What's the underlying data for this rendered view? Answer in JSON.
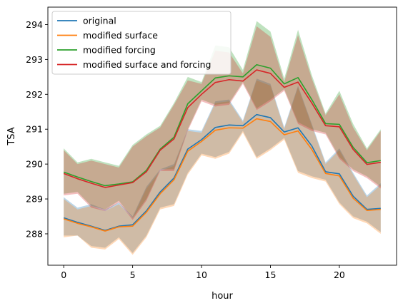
{
  "chart_data": {
    "type": "line",
    "xlabel": "hour",
    "ylabel": "TSA",
    "xlim": [
      -1.15,
      24.15
    ],
    "ylim": [
      287.1,
      294.5
    ],
    "xticks": [
      0,
      5,
      10,
      15,
      20
    ],
    "yticks": [
      288,
      289,
      290,
      291,
      292,
      293,
      294
    ],
    "grid": false,
    "legend_position": "upper-left",
    "x": [
      0,
      1,
      2,
      3,
      4,
      5,
      6,
      7,
      8,
      9,
      10,
      11,
      12,
      13,
      14,
      15,
      16,
      17,
      18,
      19,
      20,
      21,
      22,
      23
    ],
    "series": [
      {
        "name": "original",
        "color": "#1f77b4",
        "values": [
          288.46,
          288.33,
          288.22,
          288.1,
          288.22,
          288.26,
          288.66,
          289.2,
          289.6,
          290.43,
          290.7,
          291.05,
          291.12,
          291.1,
          291.42,
          291.33,
          290.92,
          291.04,
          290.52,
          289.78,
          289.72,
          289.08,
          288.7,
          288.73
        ],
        "lower": [
          287.95,
          287.95,
          287.65,
          287.6,
          287.9,
          287.45,
          287.95,
          288.75,
          288.85,
          289.75,
          290.3,
          290.2,
          290.35,
          290.95,
          290.2,
          290.45,
          290.75,
          289.8,
          289.65,
          289.55,
          288.9,
          288.5,
          288.35,
          288.05
        ],
        "upper": [
          289.05,
          288.75,
          288.85,
          288.7,
          288.9,
          288.5,
          289.35,
          289.85,
          290.0,
          291.0,
          290.95,
          291.8,
          291.85,
          291.25,
          292.45,
          292.3,
          291.05,
          292.25,
          291.15,
          290.05,
          290.45,
          289.75,
          289.1,
          289.45
        ]
      },
      {
        "name": "modified surface",
        "color": "#ff7f0e",
        "values": [
          288.43,
          288.3,
          288.2,
          288.08,
          288.2,
          288.22,
          288.62,
          289.15,
          289.55,
          290.37,
          290.65,
          290.97,
          291.04,
          291.03,
          291.3,
          291.22,
          290.84,
          290.95,
          290.42,
          289.73,
          289.66,
          289.02,
          288.67,
          288.7
        ],
        "lower": [
          287.9,
          287.95,
          287.6,
          287.55,
          287.85,
          287.4,
          287.9,
          288.7,
          288.8,
          289.7,
          290.25,
          290.15,
          290.3,
          290.9,
          290.15,
          290.4,
          290.7,
          289.75,
          289.6,
          289.5,
          288.85,
          288.45,
          288.3,
          288.0
        ],
        "upper": [
          289.0,
          288.7,
          288.8,
          288.65,
          288.85,
          288.45,
          289.3,
          289.8,
          289.95,
          290.95,
          290.9,
          291.75,
          291.8,
          291.2,
          292.4,
          292.25,
          291.0,
          292.2,
          291.1,
          290.0,
          290.4,
          289.7,
          289.05,
          289.4
        ]
      },
      {
        "name": "modified forcing",
        "color": "#2ca02c",
        "values": [
          289.77,
          289.63,
          289.5,
          289.38,
          289.43,
          289.49,
          289.82,
          290.43,
          290.77,
          291.73,
          292.1,
          292.47,
          292.53,
          292.5,
          292.85,
          292.75,
          292.3,
          292.48,
          291.85,
          291.16,
          291.14,
          290.48,
          290.04,
          290.1
        ],
        "lower": [
          289.15,
          289.2,
          288.8,
          288.7,
          288.95,
          288.45,
          289.0,
          289.85,
          289.85,
          291.0,
          291.85,
          291.7,
          291.75,
          292.35,
          291.6,
          291.85,
          292.15,
          291.2,
          291.0,
          290.9,
          290.2,
          289.85,
          289.65,
          289.35
        ],
        "upper": [
          290.45,
          290.05,
          290.15,
          290.05,
          289.95,
          290.55,
          290.85,
          291.1,
          291.75,
          292.5,
          292.35,
          293.4,
          293.35,
          292.7,
          294.1,
          293.8,
          292.45,
          293.85,
          292.55,
          291.45,
          292.1,
          291.15,
          290.45,
          291.0
        ]
      },
      {
        "name": "modified surface and forcing",
        "color": "#d62728",
        "values": [
          289.73,
          289.58,
          289.45,
          289.33,
          289.4,
          289.47,
          289.78,
          290.4,
          290.72,
          291.62,
          292.0,
          292.34,
          292.42,
          292.38,
          292.7,
          292.6,
          292.2,
          292.35,
          291.75,
          291.1,
          291.07,
          290.42,
          289.99,
          290.05
        ],
        "lower": [
          289.1,
          289.15,
          288.75,
          288.65,
          288.9,
          288.4,
          288.95,
          289.8,
          289.8,
          290.95,
          291.8,
          291.65,
          291.7,
          292.3,
          291.55,
          291.8,
          292.1,
          291.15,
          290.95,
          290.85,
          290.15,
          289.8,
          289.6,
          289.3
        ],
        "upper": [
          290.4,
          290.0,
          290.1,
          290.0,
          289.9,
          290.5,
          290.8,
          291.05,
          291.7,
          292.4,
          292.3,
          293.25,
          293.2,
          292.6,
          293.95,
          293.65,
          292.35,
          293.7,
          292.45,
          291.4,
          292.0,
          291.05,
          290.4,
          290.95
        ]
      }
    ]
  }
}
